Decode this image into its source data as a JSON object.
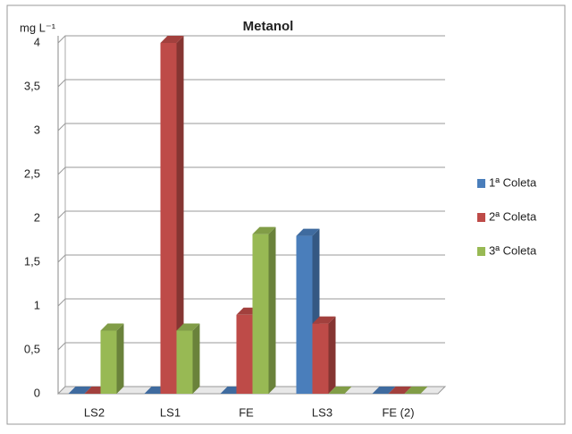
{
  "chart_data": {
    "type": "bar3d",
    "title": "Metanol",
    "y_label": "mg L⁻¹",
    "categories": [
      "LS2",
      "LS1",
      "FE",
      "LS3",
      "FE  (2)"
    ],
    "series": [
      {
        "name": "1ª Coleta",
        "color": "#4a7ebb",
        "values": [
          0,
          0,
          0,
          1.8,
          0
        ]
      },
      {
        "name": "2ª Coleta",
        "color": "#be4b48",
        "values": [
          0,
          4,
          0.9,
          0.8,
          0
        ]
      },
      {
        "name": "3ª Coleta",
        "color": "#98b954",
        "values": [
          0.72,
          0.72,
          1.82,
          0,
          0
        ]
      }
    ],
    "ylim": [
      0,
      4
    ],
    "yticks": [
      0,
      {
        "value": 0.5,
        "label": "0,5"
      },
      1,
      {
        "value": 1.5,
        "label": "1,5"
      },
      2,
      {
        "value": 2.5,
        "label": "2,5"
      },
      3,
      {
        "value": 3.5,
        "label": "3,5"
      },
      4
    ],
    "grid": true,
    "legend": "right"
  }
}
